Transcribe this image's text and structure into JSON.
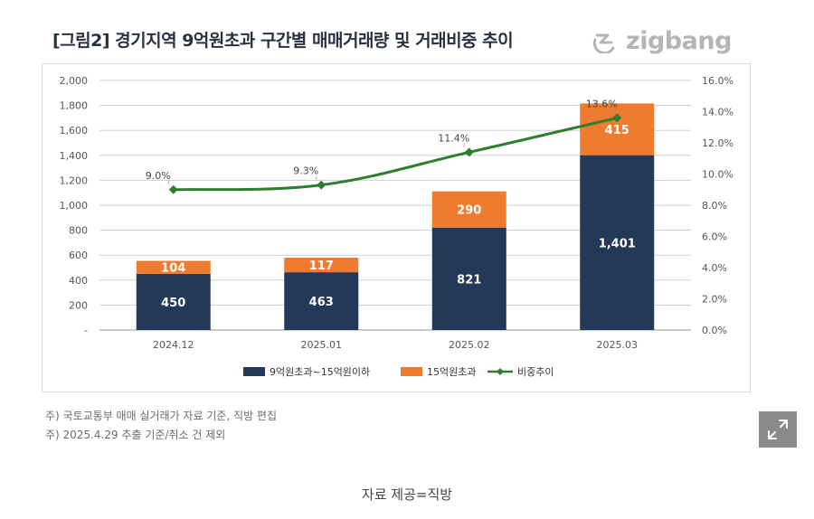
{
  "header": {
    "title": "[그림2] 경기지역 9억원초과 구간별 매매거래량 및 거래비중 추이",
    "logo_text": "zigbang"
  },
  "colors": {
    "navy": "#243858",
    "orange": "#ee7b30",
    "green": "#2f7d2f",
    "grid": "#cfcfcf"
  },
  "chart_data": {
    "type": "bar",
    "stacked": true,
    "categories": [
      "2024.12",
      "2025.01",
      "2025.02",
      "2025.03"
    ],
    "series": [
      {
        "name": "9억원초과~15억원이하",
        "type": "bar",
        "axis": "left",
        "values": [
          450,
          463,
          821,
          1401
        ]
      },
      {
        "name": "15억원초과",
        "type": "bar",
        "axis": "left",
        "values": [
          104,
          117,
          290,
          415
        ]
      },
      {
        "name": "비중추이",
        "type": "line",
        "axis": "right",
        "values": [
          9.0,
          9.3,
          11.4,
          13.6
        ]
      }
    ],
    "bar_labels": [
      [
        "450",
        "463",
        "821",
        "1,401"
      ],
      [
        "104",
        "117",
        "290",
        "415"
      ]
    ],
    "line_labels": [
      "9.0%",
      "9.3%",
      "11.4%",
      "13.6%"
    ],
    "left_axis": {
      "min": 0,
      "max": 2000,
      "step": 200,
      "ticks": [
        "-",
        "200",
        "400",
        "600",
        "800",
        "1,000",
        "1,200",
        "1,400",
        "1,600",
        "1,800",
        "2,000"
      ]
    },
    "right_axis": {
      "min": 0,
      "max": 16,
      "step": 2,
      "ticks": [
        "0.0%",
        "2.0%",
        "4.0%",
        "6.0%",
        "8.0%",
        "10.0%",
        "12.0%",
        "14.0%",
        "16.0%"
      ]
    },
    "grid": true,
    "legend_position": "bottom"
  },
  "notes": {
    "line1": "주) 국토교통부 매매 실거래가 자료 기준, 직방 편집",
    "line2": "주) 2025.4.29 추출 기준/취소 건 제외"
  },
  "caption": "자료 제공=직방"
}
